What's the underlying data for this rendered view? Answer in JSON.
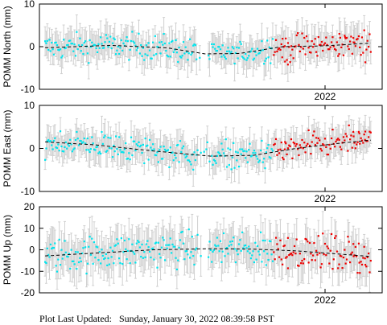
{
  "footer": {
    "label": "Plot Last Updated:",
    "value": "Sunday, January 30, 2022 08:39:58 PST"
  },
  "colors": {
    "error_bar": "#d0d0d0",
    "point": "#00e5ee",
    "recent_point": "#ee0000",
    "trend": "#000000",
    "frame": "#000000"
  },
  "chart_data": [
    {
      "type": "scatter",
      "ylabel": "POMM North (mm)",
      "ylim": [
        -10,
        10
      ],
      "yticks": [
        -10,
        0,
        10
      ],
      "xtick_label": "2022",
      "xlim": [
        2021.0,
        2022.2
      ],
      "xtick": 2022.0,
      "recent_after": 2021.82,
      "trend": [
        [
          2021.0,
          -0.3
        ],
        [
          2021.25,
          0.3
        ],
        [
          2021.45,
          -0.3
        ],
        [
          2021.58,
          -1.7
        ],
        [
          2021.7,
          -1.6
        ],
        [
          2021.85,
          0.0
        ],
        [
          2022.0,
          0.2
        ],
        [
          2022.2,
          1.0
        ]
      ],
      "noise": 1.5,
      "error": 3.2,
      "extra": [
        [
          2021.85,
          -2.5
        ],
        [
          2021.86,
          -3.5
        ],
        [
          2021.87,
          -4.2
        ],
        [
          2021.88,
          -2.0
        ],
        [
          2022.05,
          3.0
        ],
        [
          2022.07,
          2.2
        ],
        [
          2022.1,
          1.0
        ]
      ]
    },
    {
      "type": "scatter",
      "ylabel": "POMM East (mm)",
      "ylim": [
        -10,
        10
      ],
      "yticks": [
        -10,
        0,
        10
      ],
      "xtick_label": "2022",
      "xlim": [
        2021.0,
        2022.2
      ],
      "xtick": 2022.0,
      "recent_after": 2021.82,
      "trend": [
        [
          2021.0,
          1.6
        ],
        [
          2021.2,
          0.8
        ],
        [
          2021.4,
          -0.6
        ],
        [
          2021.6,
          -1.8
        ],
        [
          2021.75,
          -1.6
        ],
        [
          2021.9,
          0.0
        ],
        [
          2022.05,
          1.2
        ],
        [
          2022.2,
          2.2
        ]
      ],
      "noise": 1.6,
      "error": 3.0,
      "extra": [
        [
          2022.1,
          2.8
        ],
        [
          2022.12,
          3.5
        ],
        [
          2022.14,
          2.0
        ],
        [
          2021.86,
          1.5
        ]
      ]
    },
    {
      "type": "scatter",
      "ylabel": "POMM Up (mm)",
      "ylim": [
        -20,
        20
      ],
      "yticks": [
        -20,
        -10,
        0,
        10,
        20
      ],
      "xtick_label": "2022",
      "xlim": [
        2021.0,
        2022.2
      ],
      "xtick": 2022.0,
      "recent_after": 2021.82,
      "trend": [
        [
          2021.0,
          -3.0
        ],
        [
          2021.2,
          -1.5
        ],
        [
          2021.4,
          0.0
        ],
        [
          2021.6,
          0.5
        ],
        [
          2021.75,
          0.3
        ],
        [
          2021.9,
          -0.5
        ],
        [
          2022.05,
          -2.0
        ],
        [
          2022.2,
          -3.5
        ]
      ],
      "noise": 4.0,
      "error": 8.0,
      "extra": [
        [
          2022.1,
          -3.0
        ],
        [
          2022.12,
          -6.0
        ],
        [
          2022.14,
          -4.0
        ],
        [
          2021.87,
          5.5
        ]
      ]
    }
  ]
}
